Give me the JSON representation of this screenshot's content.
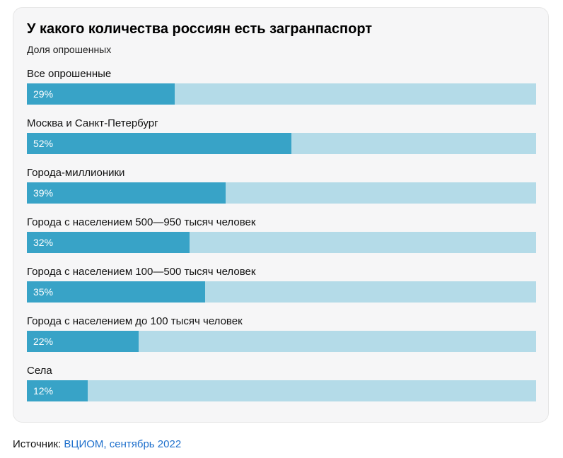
{
  "chart_data": {
    "type": "bar",
    "title": "У какого количества россиян есть загранпаспорт",
    "subtitle": "Доля опрошенных",
    "categories": [
      "Все опрошенные",
      "Москва и Санкт-Петербург",
      "Города-миллионики",
      "Города с населением 500—950 тысяч человек",
      "Города с населением 100—500 тысяч человек",
      "Города с населением до 100 тысяч человек",
      "Села"
    ],
    "values": [
      29,
      52,
      39,
      32,
      35,
      22,
      12
    ],
    "value_labels": [
      "29%",
      "52%",
      "39%",
      "32%",
      "35%",
      "22%",
      "12%"
    ],
    "xlim": [
      0,
      100
    ],
    "colors": {
      "fill": "#38a3c7",
      "track": "#b4dbe8"
    }
  },
  "footer": {
    "source_label": "Источник:",
    "source_link_text": "ВЦИОМ, сентябрь 2022"
  }
}
